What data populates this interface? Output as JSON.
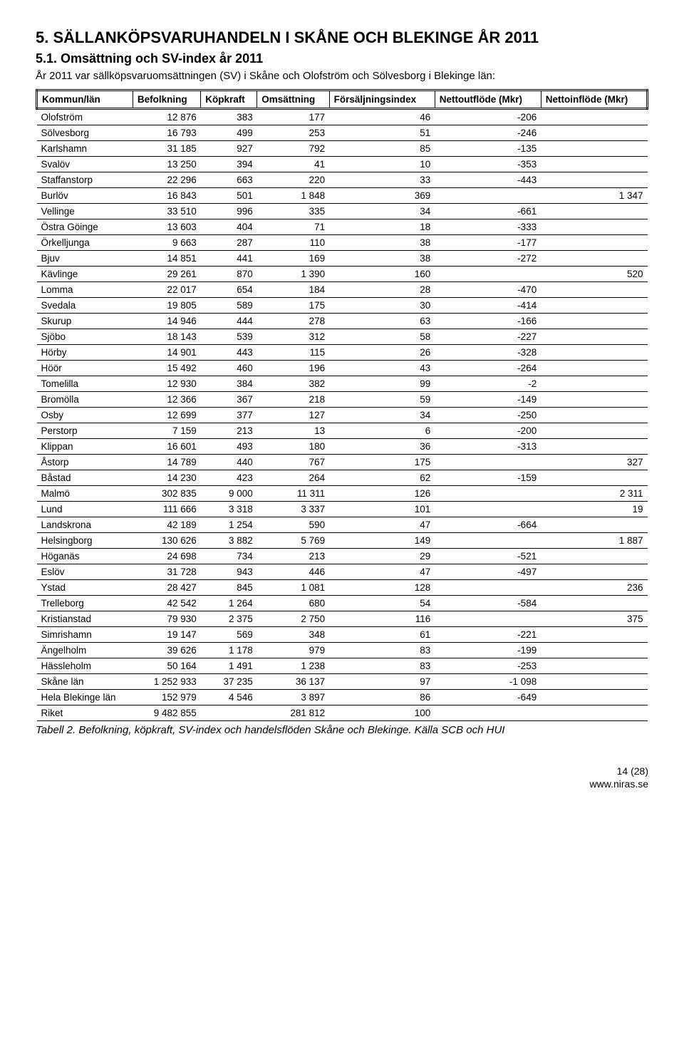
{
  "heading": "5. SÄLLANKÖPSVARUHANDELN I SKÅNE OCH BLEKINGE ÅR 2011",
  "subheading": "5.1. Omsättning och SV-index år 2011",
  "intro": "År 2011 var sällköpsvaruomsättningen (SV) i Skåne och Olofström och Sölvesborg i Blekinge län:",
  "columns": [
    "Kommun/län",
    "Befolkning",
    "Köpkraft",
    "Omsättning",
    "Försäljningsindex",
    "Nettoutflöde (Mkr)",
    "Nettoinflöde (Mkr)"
  ],
  "rows": [
    [
      "Olofström",
      "12 876",
      "383",
      "177",
      "46",
      "-206",
      ""
    ],
    [
      "Sölvesborg",
      "16 793",
      "499",
      "253",
      "51",
      "-246",
      ""
    ],
    [
      "Karlshamn",
      "31 185",
      "927",
      "792",
      "85",
      "-135",
      ""
    ],
    [
      "Svalöv",
      "13 250",
      "394",
      "41",
      "10",
      "-353",
      ""
    ],
    [
      "Staffanstorp",
      "22 296",
      "663",
      "220",
      "33",
      "-443",
      ""
    ],
    [
      "Burlöv",
      "16 843",
      "501",
      "1 848",
      "369",
      "",
      "1 347"
    ],
    [
      "Vellinge",
      "33 510",
      "996",
      "335",
      "34",
      "-661",
      ""
    ],
    [
      "Östra Göinge",
      "13 603",
      "404",
      "71",
      "18",
      "-333",
      ""
    ],
    [
      "Örkelljunga",
      "9 663",
      "287",
      "110",
      "38",
      "-177",
      ""
    ],
    [
      "Bjuv",
      "14 851",
      "441",
      "169",
      "38",
      "-272",
      ""
    ],
    [
      "Kävlinge",
      "29 261",
      "870",
      "1 390",
      "160",
      "",
      "520"
    ],
    [
      "Lomma",
      "22 017",
      "654",
      "184",
      "28",
      "-470",
      ""
    ],
    [
      "Svedala",
      "19 805",
      "589",
      "175",
      "30",
      "-414",
      ""
    ],
    [
      "Skurup",
      "14 946",
      "444",
      "278",
      "63",
      "-166",
      ""
    ],
    [
      "Sjöbo",
      "18 143",
      "539",
      "312",
      "58",
      "-227",
      ""
    ],
    [
      "Hörby",
      "14 901",
      "443",
      "115",
      "26",
      "-328",
      ""
    ],
    [
      "Höör",
      "15 492",
      "460",
      "196",
      "43",
      "-264",
      ""
    ],
    [
      "Tomelilla",
      "12 930",
      "384",
      "382",
      "99",
      "-2",
      ""
    ],
    [
      "Bromölla",
      "12 366",
      "367",
      "218",
      "59",
      "-149",
      ""
    ],
    [
      "Osby",
      "12 699",
      "377",
      "127",
      "34",
      "-250",
      ""
    ],
    [
      "Perstorp",
      "7 159",
      "213",
      "13",
      "6",
      "-200",
      ""
    ],
    [
      "Klippan",
      "16 601",
      "493",
      "180",
      "36",
      "-313",
      ""
    ],
    [
      "Åstorp",
      "14 789",
      "440",
      "767",
      "175",
      "",
      "327"
    ],
    [
      "Båstad",
      "14 230",
      "423",
      "264",
      "62",
      "-159",
      ""
    ],
    [
      "Malmö",
      "302 835",
      "9 000",
      "11 311",
      "126",
      "",
      "2 311"
    ],
    [
      "Lund",
      "111 666",
      "3 318",
      "3 337",
      "101",
      "",
      "19"
    ],
    [
      "Landskrona",
      "42 189",
      "1 254",
      "590",
      "47",
      "-664",
      ""
    ],
    [
      "Helsingborg",
      "130 626",
      "3 882",
      "5 769",
      "149",
      "",
      "1 887"
    ],
    [
      "Höganäs",
      "24 698",
      "734",
      "213",
      "29",
      "-521",
      ""
    ],
    [
      "Eslöv",
      "31 728",
      "943",
      "446",
      "47",
      "-497",
      ""
    ],
    [
      "Ystad",
      "28 427",
      "845",
      "1 081",
      "128",
      "",
      "236"
    ],
    [
      "Trelleborg",
      "42 542",
      "1 264",
      "680",
      "54",
      "-584",
      ""
    ],
    [
      "Kristianstad",
      "79 930",
      "2 375",
      "2 750",
      "116",
      "",
      "375"
    ],
    [
      "Simrishamn",
      "19 147",
      "569",
      "348",
      "61",
      "-221",
      ""
    ],
    [
      "Ängelholm",
      "39 626",
      "1 178",
      "979",
      "83",
      "-199",
      ""
    ],
    [
      "Hässleholm",
      "50 164",
      "1 491",
      "1 238",
      "83",
      "-253",
      ""
    ],
    [
      "Skåne län",
      "1 252 933",
      "37 235",
      "36 137",
      "97",
      "-1 098",
      ""
    ],
    [
      "Hela Blekinge län",
      "152 979",
      "4 546",
      "3 897",
      "86",
      "-649",
      ""
    ],
    [
      "Riket",
      "9 482 855",
      "",
      "281 812",
      "100",
      "",
      ""
    ]
  ],
  "caption": "Tabell 2. Befolkning, köpkraft, SV-index och handelsflöden Skåne och  Blekinge. Källa SCB och HUI",
  "footer_page": "14 (28)",
  "footer_site": "www.niras.se"
}
